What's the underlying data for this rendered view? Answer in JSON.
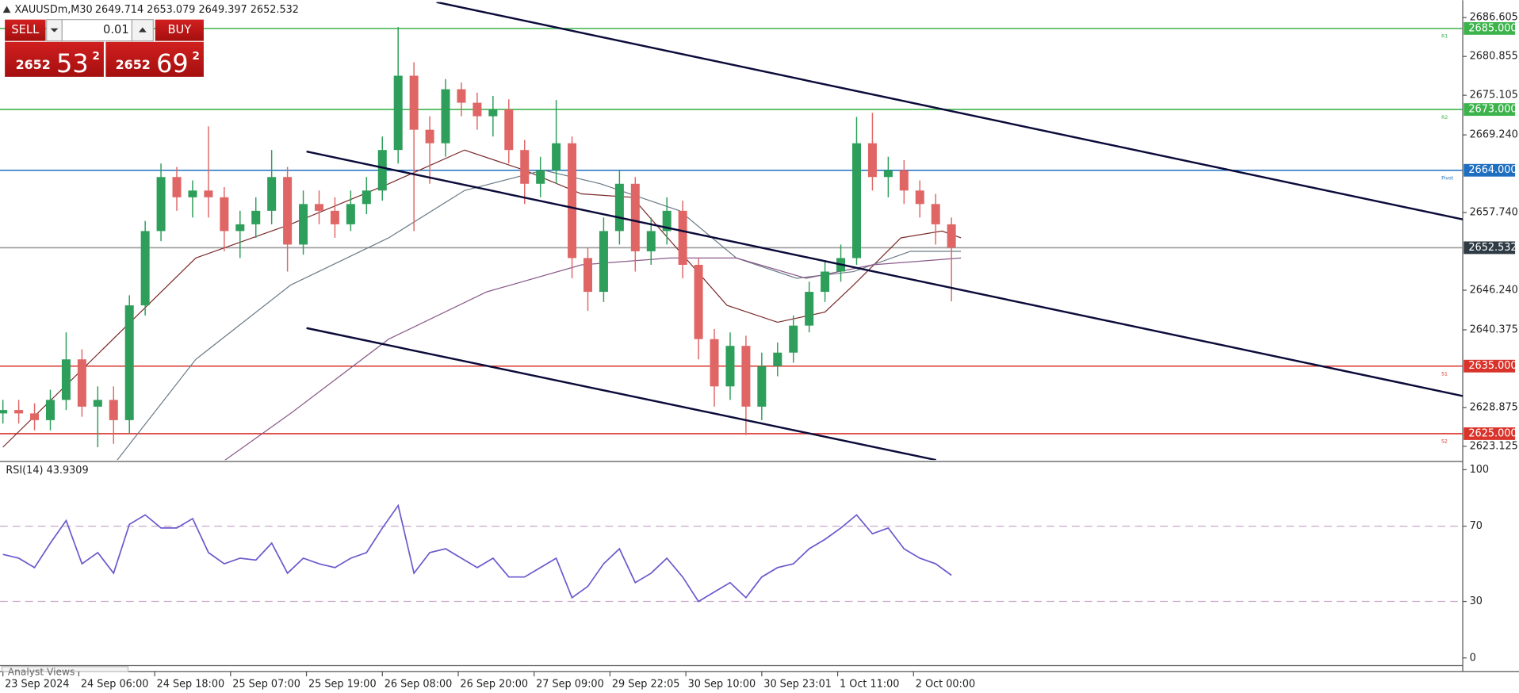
{
  "header": {
    "symbol": "XAUUSDm,M30",
    "ohlc": "2649.714 2653.079 2649.397 2652.532"
  },
  "trade_panel": {
    "sell": "SELL",
    "buy": "BUY",
    "volume": "0.01",
    "sell_price": {
      "big": "2652",
      "main": "53",
      "sup": "2"
    },
    "buy_price": {
      "big": "2652",
      "main": "69",
      "sup": "2"
    }
  },
  "chart_data": [
    {
      "type": "candlestick",
      "up_color": "#2e9e5b",
      "down_color": "#e06666",
      "x": [
        0,
        5,
        10,
        15,
        20,
        25,
        30,
        35,
        40,
        45,
        50,
        55,
        60,
        65,
        70,
        75,
        80,
        85,
        90,
        95,
        100,
        105,
        110,
        115,
        120,
        125,
        130,
        135,
        140,
        145,
        150,
        155,
        160,
        165,
        170,
        175,
        180,
        185,
        190,
        195,
        200,
        205,
        210,
        215,
        220,
        225,
        230,
        235,
        240,
        245,
        250,
        255,
        260,
        265,
        270,
        275,
        280,
        285,
        290,
        295,
        300
      ],
      "open": [
        2628,
        2628.5,
        2628,
        2627,
        2630,
        2636,
        2629,
        2630,
        2627,
        2644,
        2655,
        2663,
        2660,
        2661,
        2660,
        2655,
        2656,
        2658,
        2663,
        2653,
        2659,
        2658,
        2656,
        2659,
        2661,
        2667,
        2678,
        2670,
        2668,
        2676,
        2674,
        2672,
        2673,
        2667,
        2662,
        2664,
        2668,
        2651,
        2646,
        2655,
        2662,
        2652,
        2655,
        2658,
        2650,
        2639,
        2632,
        2638,
        2629,
        2635,
        2637,
        2641,
        2646,
        2649,
        2651,
        2668,
        2663,
        2664,
        2661,
        2659,
        2656
      ],
      "high": [
        2630,
        2630,
        2629.5,
        2631.5,
        2640,
        2637.5,
        2632,
        2632,
        2645.5,
        2656.5,
        2665,
        2664.5,
        2662.5,
        2670.5,
        2661.5,
        2658,
        2660,
        2667,
        2664.5,
        2661,
        2661,
        2660,
        2661,
        2663,
        2669,
        2685.2,
        2680,
        2672,
        2677.5,
        2677,
        2675.5,
        2675,
        2674.5,
        2668.5,
        2666,
        2674.4,
        2669,
        2652.5,
        2657,
        2664,
        2663,
        2657,
        2660,
        2659.5,
        2651,
        2640.5,
        2640,
        2639.5,
        2637,
        2638.5,
        2642.5,
        2647.5,
        2650.5,
        2653,
        2671.9,
        2672.5,
        2666,
        2665.5,
        2662.5,
        2660.5,
        2657
      ],
      "low": [
        2626.5,
        2626.5,
        2625.5,
        2625.5,
        2628.5,
        2627.5,
        2623,
        2623.5,
        2625,
        2642.5,
        2653.5,
        2658,
        2657,
        2657,
        2652,
        2651,
        2654,
        2656,
        2649,
        2651.5,
        2656,
        2654,
        2655,
        2657.5,
        2659.5,
        2665,
        2655,
        2662,
        2666,
        2672,
        2670,
        2669,
        2665,
        2659,
        2660,
        2662,
        2648,
        2643.2,
        2644.5,
        2653,
        2649,
        2650,
        2653,
        2648,
        2636,
        2629,
        2630,
        2624.8,
        2627,
        2633.5,
        2635.5,
        2640,
        2644.5,
        2647.5,
        2650,
        2661,
        2660,
        2659,
        2657,
        2653,
        2644.6
      ],
      "close": [
        2628.5,
        2628,
        2627,
        2630,
        2636,
        2629,
        2630,
        2627,
        2644,
        2655,
        2663,
        2660,
        2661,
        2660,
        2655,
        2656,
        2658,
        2663,
        2653,
        2659,
        2658,
        2656,
        2659,
        2661,
        2667,
        2678,
        2670,
        2668,
        2676,
        2674,
        2672,
        2673,
        2667,
        2662,
        2664,
        2668,
        2651,
        2646,
        2655,
        2662,
        2652,
        2655,
        2658,
        2650,
        2639,
        2632,
        2638,
        2629,
        2635,
        2637,
        2641,
        2646,
        2649,
        2651,
        2668,
        2663,
        2664,
        2661,
        2659,
        2656,
        2652.532
      ],
      "xlim": [
        -0.92,
        461.7
      ],
      "ylim": [
        2621.1,
        2688.9
      ],
      "yticks": [
        2686.605,
        2680.855,
        2675.105,
        {
          "value": 2669.24,
          "label": "2669.240"
        },
        {
          "value": 2657.74,
          "label": "2657.740"
        },
        {
          "value": 2646.24,
          "label": "2646.240"
        },
        2640.375,
        2628.875,
        2623.125
      ],
      "xticks": [
        {
          "value": 0,
          "label": "23 Sep 2024"
        },
        {
          "value": 24,
          "label": "24 Sep 06:00"
        },
        {
          "value": 48,
          "label": "24 Sep 18:00"
        },
        {
          "value": 72,
          "label": "25 Sep 07:00"
        },
        {
          "value": 96,
          "label": "25 Sep 19:00"
        },
        {
          "value": 120,
          "label": "26 Sep 08:00"
        },
        {
          "value": 144,
          "label": "26 Sep 20:00"
        },
        {
          "value": 168,
          "label": "27 Sep 09:00"
        },
        {
          "value": 192,
          "label": "29 Sep 22:05"
        },
        {
          "value": 216,
          "label": "30 Sep 10:00"
        },
        {
          "value": 240,
          "label": "30 Sep 23:01"
        },
        {
          "value": 264,
          "label": "1 Oct 11:00"
        },
        {
          "value": 288,
          "label": "2 Oct 00:00"
        }
      ],
      "levels": [
        {
          "value": 2685,
          "label": "2685.000",
          "tag": "R1",
          "color": "#3cb44b"
        },
        {
          "value": 2673,
          "label": "2673.000",
          "tag": "R2",
          "color": "#3cb44b"
        },
        {
          "value": 2664,
          "label": "2664.000",
          "tag": "Pivot",
          "color": "#1e6fc0"
        },
        {
          "value": 2652.532,
          "label": "2652.532",
          "color": "#9a9a9a",
          "box_color": "#2f3b44"
        },
        {
          "value": 2635,
          "label": "2635.000",
          "tag": "S1",
          "color": "#d9342b"
        },
        {
          "value": 2625,
          "label": "2625.000",
          "tag": "S2",
          "color": "#d9342b"
        }
      ],
      "moving_averages": [
        {
          "color": "#7a2a2a",
          "x": [
            0,
            61,
            91,
            122,
            146,
            165,
            183,
            199,
            214,
            229,
            245,
            260,
            269,
            284,
            297,
            303
          ],
          "values": [
            2623,
            2651,
            2656,
            2662,
            2667,
            2664,
            2660.5,
            2660,
            2652,
            2644,
            2641.5,
            2643,
            2647,
            2654,
            2655,
            2654
          ]
        },
        {
          "color": "#6b7b86",
          "x": [
            36,
            61,
            91,
            122,
            146,
            171,
            189,
            214,
            232,
            251,
            269,
            287,
            303
          ],
          "values": [
            2621,
            2636,
            2647,
            2654,
            2661,
            2664,
            2662,
            2658,
            2651,
            2648,
            2649,
            2652,
            2652
          ]
        },
        {
          "color": "#8a5a8a",
          "x": [
            70,
            91,
            122,
            153,
            183,
            211,
            232,
            254,
            275,
            303
          ],
          "values": [
            2621,
            2628,
            2639,
            2646,
            2650,
            2651,
            2651,
            2648,
            2650,
            2651
          ]
        }
      ]
    },
    {
      "type": "line",
      "title": "RSI(14) 43.9309",
      "color": "#6a5acd",
      "x": [
        0,
        5,
        10,
        15,
        20,
        25,
        30,
        35,
        40,
        45,
        50,
        55,
        60,
        65,
        70,
        75,
        80,
        85,
        90,
        95,
        100,
        105,
        110,
        115,
        120,
        125,
        130,
        135,
        140,
        145,
        150,
        155,
        160,
        165,
        170,
        175,
        180,
        185,
        190,
        195,
        200,
        205,
        210,
        215,
        220,
        225,
        230,
        235,
        240,
        245,
        250,
        255,
        260,
        265,
        270,
        275,
        280,
        285,
        290,
        295,
        300
      ],
      "values": [
        55,
        53,
        48,
        61,
        73,
        50,
        56,
        45,
        71,
        76,
        69,
        69,
        74,
        56,
        50,
        53,
        52,
        61,
        45,
        53,
        50,
        48,
        53,
        56,
        69,
        81,
        45,
        56,
        58,
        53,
        48,
        53,
        43,
        43,
        48,
        53,
        32,
        38,
        50,
        58,
        40,
        45,
        53,
        43,
        30,
        35,
        40,
        32,
        43,
        48,
        50,
        58,
        63,
        69,
        76,
        66,
        69,
        58,
        53,
        50,
        43.9309
      ],
      "ylim": [
        -3.6,
        103.6
      ],
      "yticks": [
        0,
        30,
        70,
        100
      ],
      "levels": [
        30,
        70
      ]
    }
  ],
  "footer": {
    "tab": "Analyst Views"
  }
}
